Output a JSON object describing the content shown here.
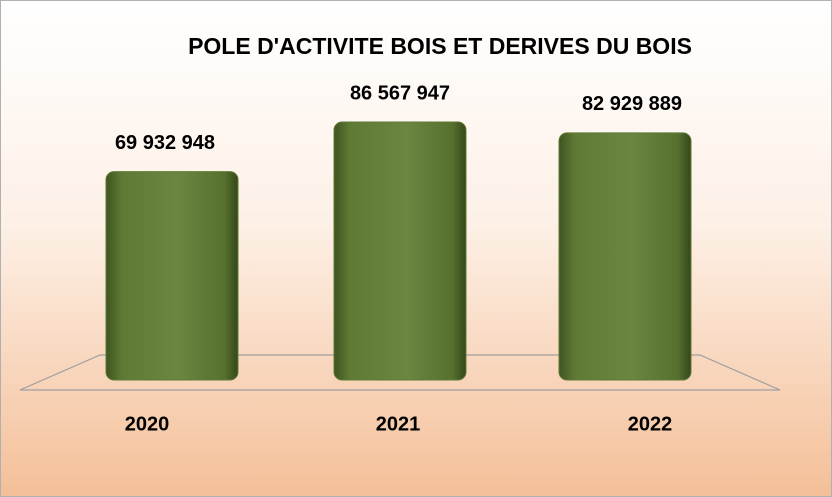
{
  "chart_data": {
    "type": "bar",
    "title": "POLE D'ACTIVITE BOIS ET DERIVES DU BOIS",
    "categories": [
      "2020",
      "2021",
      "2022"
    ],
    "values": [
      69932948,
      86567947,
      82929889
    ],
    "value_labels": [
      "69 932 948",
      "86 567 947",
      "82 929 889"
    ],
    "color": "#5f7a35"
  }
}
